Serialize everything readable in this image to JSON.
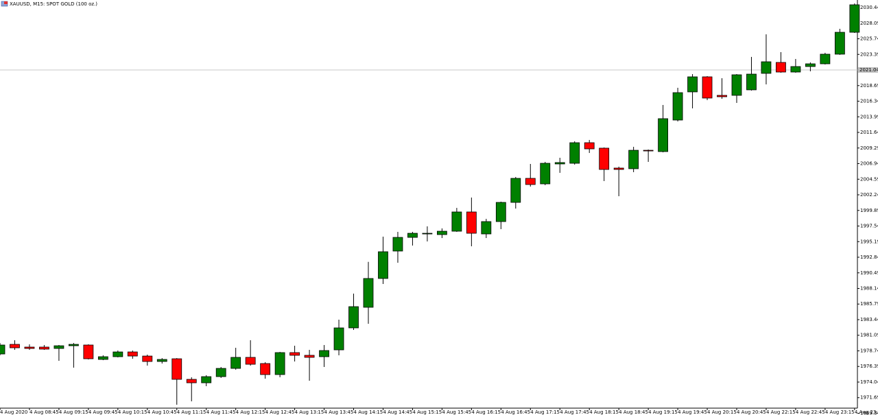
{
  "chart_data": {
    "type": "candlestick",
    "title": "XAUUSD, M15:  SPOT GOLD (100 oz.)",
    "categories": [
      "4 Aug 2020",
      null,
      "4 Aug 08:45",
      null,
      "4 Aug 09:15",
      null,
      "4 Aug 09:45",
      null,
      "4 Aug 10:15",
      null,
      "4 Aug 10:45",
      null,
      "4 Aug 11:15",
      null,
      "4 Aug 11:45",
      null,
      "4 Aug 12:15",
      null,
      "4 Aug 12:45",
      null,
      "4 Aug 13:15",
      null,
      "4 Aug 13:45",
      null,
      "4 Aug 14:15",
      null,
      "4 Aug 14:45",
      null,
      "4 Aug 15:15",
      null,
      "4 Aug 15:45",
      null,
      "4 Aug 16:15",
      null,
      "4 Aug 16:45",
      null,
      "4 Aug 17:15",
      null,
      "4 Aug 17:45",
      null,
      "4 Aug 18:15",
      null,
      "4 Aug 18:45",
      null,
      "4 Aug 19:15",
      null,
      "4 Aug 19:45",
      null,
      "4 Aug 20:15",
      null,
      "4 Aug 20:45",
      null,
      "4 Aug 22:15",
      null,
      "4 Aug 22:45",
      null,
      "4 Aug 23:15",
      null,
      "4 Aug 23:45"
    ],
    "open": [
      1978.27,
      1979.72,
      1979.31,
      1979.31,
      1979.1,
      1979.51,
      1979.62,
      1977.45,
      1977.86,
      1978.58,
      1977.96,
      1977.14,
      1977.55,
      1974.45,
      1973.93,
      1974.86,
      1976.1,
      1977.76,
      1976.83,
      1975.17,
      1978.48,
      1978.07,
      1977.86,
      1978.89,
      1982.2,
      1985.3,
      1989.64,
      1993.77,
      1995.83,
      1996.35,
      1996.25,
      1996.76,
      1999.66,
      1996.35,
      1998.21,
      2001.1,
      2004.72,
      2003.89,
      2006.89,
      2006.99,
      2010.09,
      2009.27,
      2006.27,
      2006.17,
      2008.95,
      2008.75,
      2013.5,
      2017.74,
      2020.01,
      2017.22,
      2017.22,
      2018.05,
      2020.53,
      2022.18,
      2020.73,
      2021.56,
      2021.97,
      2023.42,
      2026.72
    ],
    "high": [
      1979.93,
      1980.34,
      1979.72,
      1979.62,
      1979.62,
      1979.93,
      1979.72,
      1978.07,
      1978.79,
      1978.79,
      1978.17,
      1977.65,
      1977.65,
      1974.76,
      1975.07,
      1976.31,
      1979.2,
      1980.34,
      1977.03,
      1978.58,
      1979.51,
      1978.89,
      1979.62,
      1983.44,
      1987.36,
      1992.14,
      1995.94,
      1996.66,
      1996.66,
      1997.49,
      1997.18,
      2000.27,
      2001.83,
      1998.62,
      2001.21,
      2004.93,
      2006.89,
      2007.2,
      2007.82,
      2010.3,
      2010.5,
      2009.37,
      2006.48,
      2009.47,
      2009.06,
      2015.77,
      2018.36,
      2020.42,
      2020.11,
      2019.8,
      2020.42,
      2023.01,
      2026.41,
      2023.73,
      2022.7,
      2022.18,
      2023.63,
      2027.24,
      2031.06
    ],
    "low": [
      1978.07,
      1978.89,
      1978.89,
      1978.89,
      1977.24,
      1976.21,
      1977.45,
      1977.34,
      1977.76,
      1977.55,
      1976.52,
      1976.83,
      1970.63,
      1971.14,
      1973.42,
      1974.66,
      1975.9,
      1976.52,
      1974.55,
      1974.76,
      1977.14,
      1974.24,
      1976.31,
      1978.07,
      1981.89,
      1982.82,
      1988.81,
      1992.01,
      1994.6,
      1995.22,
      1995.73,
      1996.66,
      1994.49,
      1995.73,
      1997.07,
      2000.17,
      2003.48,
      2003.69,
      2005.55,
      2006.79,
      2008.54,
      2004.31,
      2002.03,
      2005.65,
      2007.2,
      2008.64,
      2013.29,
      2015.26,
      2016.5,
      2016.7,
      2016.08,
      2017.94,
      2018.87,
      2020.63,
      2020.63,
      2020.84,
      2021.87,
      2023.32,
      2026.62
    ],
    "close": [
      1979.62,
      1979.2,
      1979.1,
      1979.0,
      1979.51,
      1979.72,
      1977.55,
      1977.86,
      1978.58,
      1977.96,
      1977.14,
      1977.45,
      1974.45,
      1973.93,
      1974.86,
      1976.1,
      1977.76,
      1976.72,
      1975.17,
      1978.48,
      1978.07,
      1977.76,
      1978.79,
      1982.2,
      1985.4,
      1989.64,
      1993.67,
      1995.83,
      1996.45,
      1996.45,
      1996.76,
      1999.66,
      1996.45,
      1998.21,
      2001.1,
      2004.72,
      2003.79,
      2006.99,
      2007.1,
      2010.09,
      2009.16,
      2006.06,
      2006.06,
      2008.95,
      2008.85,
      2013.71,
      2017.63,
      2020.01,
      2016.81,
      2017.01,
      2020.32,
      2020.42,
      2022.28,
      2020.73,
      2021.56,
      2021.97,
      2023.42,
      2026.72,
      2030.86
    ],
    "up_color": "#008000",
    "down_color": "#ff0000",
    "price_line": 2021.04,
    "ylim": [
      1969.08,
      2031.58
    ],
    "yticks": [
      2030.44,
      2028.09,
      2025.74,
      2023.39,
      2018.69,
      2016.34,
      2013.99,
      2011.64,
      2009.29,
      2006.94,
      2004.59,
      2002.24,
      1999.89,
      1997.54,
      1995.19,
      1992.84,
      1990.49,
      1988.14,
      1985.79,
      1983.44,
      1981.09,
      1978.74,
      1976.39,
      1974.04,
      1971.69,
      1969.34
    ],
    "grid": false
  }
}
